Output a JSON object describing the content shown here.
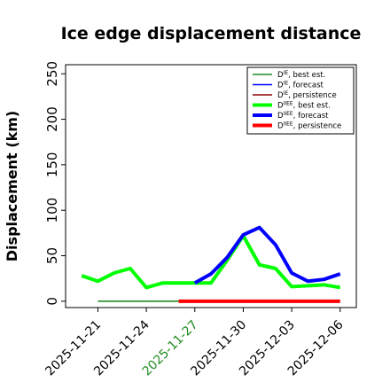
{
  "chart_data": {
    "type": "line",
    "title": "Ice edge displacement distance",
    "xlabel": "",
    "ylabel": "Displacement (km)",
    "ylim": [
      -7,
      260
    ],
    "y_ticks": [
      0,
      50,
      100,
      150,
      200,
      250
    ],
    "xlim": [
      "2025-11-19",
      "2025-12-07"
    ],
    "x_ticks": [
      "2025-11-21",
      "2025-11-24",
      "2025-11-27",
      "2025-11-30",
      "2025-12-03",
      "2025-12-06"
    ],
    "highlight_tick": "2025-11-27",
    "highlight_color": "#228b22",
    "grid": false,
    "legend_position": "top-right",
    "series": [
      {
        "name": "D^IE, best est.",
        "color": "#228b22",
        "width": "thin",
        "x": [
          "2025-11-21",
          "2025-11-22",
          "2025-11-23",
          "2025-11-24",
          "2025-11-25",
          "2025-11-26",
          "2025-11-27"
        ],
        "y": [
          0,
          0,
          0,
          0,
          0,
          0,
          0
        ]
      },
      {
        "name": "D^IE, forecast",
        "color": "#0000ff",
        "width": "thin",
        "x": [],
        "y": []
      },
      {
        "name": "D^IE, persistence",
        "color": "#8b0000",
        "width": "thin",
        "x": [],
        "y": []
      },
      {
        "name": "D^IIEE, best est.",
        "color": "#00ff00",
        "width": "thick",
        "x": [
          "2025-11-20",
          "2025-11-21",
          "2025-11-22",
          "2025-11-23",
          "2025-11-24",
          "2025-11-25",
          "2025-11-26",
          "2025-11-27",
          "2025-11-28",
          "2025-11-29",
          "2025-11-30",
          "2025-12-01",
          "2025-12-02",
          "2025-12-03",
          "2025-12-04",
          "2025-12-05",
          "2025-12-06"
        ],
        "y": [
          28,
          22,
          31,
          36,
          15,
          20,
          20,
          20,
          20,
          45,
          72,
          40,
          36,
          16,
          17,
          18,
          15
        ]
      },
      {
        "name": "D^IIEE, forecast",
        "color": "#0000ff",
        "width": "thick",
        "x": [
          "2025-11-27",
          "2025-11-28",
          "2025-11-29",
          "2025-11-30",
          "2025-12-01",
          "2025-12-02",
          "2025-12-03",
          "2025-12-04",
          "2025-12-05",
          "2025-12-06"
        ],
        "y": [
          20,
          30,
          48,
          73,
          81,
          62,
          31,
          22,
          24,
          30
        ]
      },
      {
        "name": "D^IIEE, persistence",
        "color": "#ff0000",
        "width": "thick",
        "x": [
          "2025-11-26",
          "2025-11-27",
          "2025-11-28",
          "2025-11-29",
          "2025-11-30",
          "2025-12-01",
          "2025-12-02",
          "2025-12-03",
          "2025-12-04",
          "2025-12-05",
          "2025-12-06"
        ],
        "y": [
          0,
          0,
          0,
          0,
          0,
          0,
          0,
          0,
          0,
          0,
          0
        ]
      }
    ],
    "legend": [
      {
        "base": "D",
        "sup": "IE",
        "text": ", best est.",
        "color": "#228b22",
        "width": "thin"
      },
      {
        "base": "D",
        "sup": "IE",
        "text": ", forecast",
        "color": "#0000ff",
        "width": "thin"
      },
      {
        "base": "D",
        "sup": "IE",
        "text": ", persistence",
        "color": "#8b0000",
        "width": "thin"
      },
      {
        "base": "D",
        "sup": "IIEE",
        "text": ", best est.",
        "color": "#00ff00",
        "width": "thick"
      },
      {
        "base": "D",
        "sup": "IIEE",
        "text": ", forecast",
        "color": "#0000ff",
        "width": "thick"
      },
      {
        "base": "D",
        "sup": "IIEE",
        "text": ", persistence",
        "color": "#ff0000",
        "width": "thick"
      }
    ]
  }
}
